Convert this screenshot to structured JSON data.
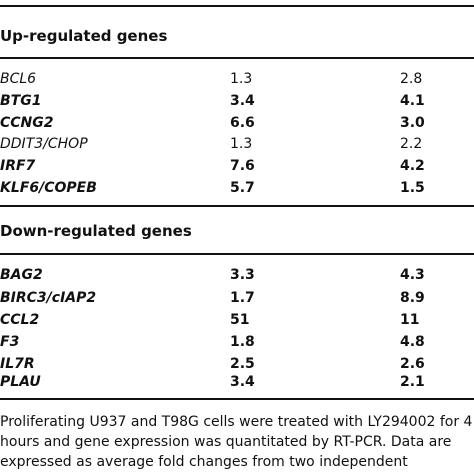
{
  "sections": [
    {
      "title": "Up-regulated genes",
      "rows": [
        {
          "gene": "BCL6",
          "v1": "1.3",
          "v2": "2.8",
          "bold": false
        },
        {
          "gene": "BTG1",
          "v1": "3.4",
          "v2": "4.1",
          "bold": true
        },
        {
          "gene": "CCNG2",
          "v1": "6.6",
          "v2": "3.0",
          "bold": true
        },
        {
          "gene": "DDIT3/CHOP",
          "v1": "1.3",
          "v2": "2.2",
          "bold": false
        },
        {
          "gene": "IRF7",
          "v1": "7.6",
          "v2": "4.2",
          "bold": true
        },
        {
          "gene": "KLF6/COPEB",
          "v1": "5.7",
          "v2": "1.5",
          "bold": true
        }
      ]
    },
    {
      "title": "Down-regulated genes",
      "rows": [
        {
          "gene": "BAG2",
          "v1": "3.3",
          "v2": "4.3",
          "bold": true
        },
        {
          "gene": "BIRC3/cIAP2",
          "v1": "1.7",
          "v2": "8.9",
          "bold": true
        },
        {
          "gene": "CCL2",
          "v1": "51",
          "v2": "11",
          "bold": true
        },
        {
          "gene": "F3",
          "v1": "1.8",
          "v2": "4.8",
          "bold": true
        },
        {
          "gene": "IL7R",
          "v1": "2.5",
          "v2": "2.6",
          "bold": true
        },
        {
          "gene": "PLAU",
          "v1": "3.4",
          "v2": "2.1",
          "bold": true
        }
      ]
    }
  ],
  "caption_lines": [
    "Proliferating U937 and T98G cells were treated with LY294002 for 4",
    "hours and gene expression was quantitated by RT-PCR. Data are",
    "expressed as average fold changes from two independent"
  ]
}
